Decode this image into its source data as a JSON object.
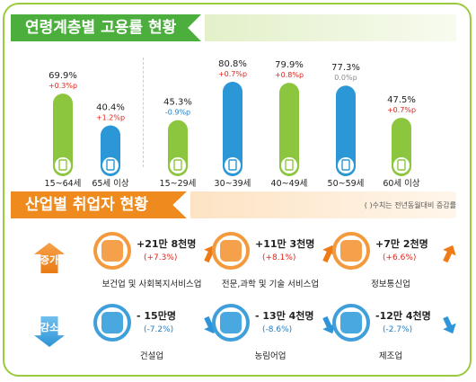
{
  "section1_title": "연령계층별 고용률 현황",
  "section2_title": "산업별 취업자 현황",
  "note": "( )수치는 전년동월대비 증감률",
  "increase_label": "증가",
  "decrease_label": "감소",
  "colors": {
    "green": "#8cc63e",
    "blue": "#2b97d6",
    "orange": "#ef8a1f",
    "up": "#e2231a",
    "down": "#1f7ac4"
  },
  "chart_data": {
    "type": "bar",
    "categories": [
      "15~64세",
      "65세 이상",
      "15~29세",
      "30~39세",
      "40~49세",
      "50~59세",
      "60세 이상"
    ],
    "values": [
      69.9,
      40.4,
      45.3,
      80.8,
      79.9,
      77.3,
      47.5
    ],
    "value_labels": [
      "69.9%",
      "40.4%",
      "45.3%",
      "80.8%",
      "79.9%",
      "77.3%",
      "47.5%"
    ],
    "changes": [
      "+0.3%p",
      "+1.2%p",
      "-0.9%p",
      "+0.7%p",
      "+0.8%p",
      "0.0%p",
      "+0.7%p"
    ],
    "change_direction": [
      "up",
      "up",
      "down",
      "up",
      "up",
      "flat",
      "up"
    ],
    "bar_colors": [
      "green",
      "blue",
      "green",
      "blue",
      "green",
      "blue",
      "green"
    ],
    "ylim": [
      0,
      100
    ]
  },
  "industries": {
    "increase": [
      {
        "name": "보건업 및 사회복지서비스업",
        "value": "+21만 8천명",
        "change": "(+7.3%)",
        "icon": "first-aid-kit-icon"
      },
      {
        "name": "전문,과학 및 기술 서비스업",
        "value": "+11만 3천명",
        "change": "(+8.1%)",
        "icon": "lab-flask-icon"
      },
      {
        "name": "정보통신업",
        "value": "+7만 2천명",
        "change": "(+6.6%)",
        "icon": "smartphone-icon"
      }
    ],
    "decrease": [
      {
        "name": "건설업",
        "value": "- 15만명",
        "change": "(-7.2%)",
        "icon": "excavator-icon"
      },
      {
        "name": "농림어업",
        "value": "- 13만 4천명",
        "change": "(-8.6%)",
        "icon": "wheat-icon"
      },
      {
        "name": "제조업",
        "value": "-12만 4천명",
        "change": "(-2.7%)",
        "icon": "gear-icon"
      }
    ]
  }
}
